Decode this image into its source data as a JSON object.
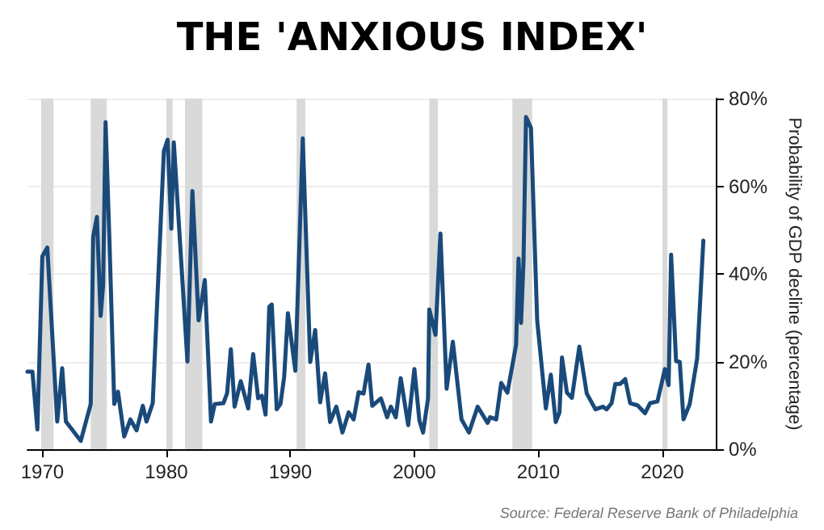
{
  "chart_data": {
    "type": "line",
    "title": "THE 'ANXIOUS INDEX'",
    "ylabel": "Probability of GDP decline (percentage)",
    "annotations": [
      "Source: Federal Reserve Bank of Philadelphia"
    ],
    "x": [
      1968.8,
      1969.2,
      1969.6,
      1970,
      1970.4,
      1971.2,
      1971.6,
      1971.9,
      1973.1,
      1973.9,
      1974.1,
      1974.4,
      1974.7,
      1974.9,
      1975.1,
      1975.4,
      1975.8,
      1976.1,
      1976.6,
      1977.1,
      1977.6,
      1978.1,
      1978.4,
      1978.9,
      1979.8,
      1980.1,
      1980.4,
      1980.6,
      1981.7,
      1982.1,
      1982.6,
      1983.1,
      1983.6,
      1983.9,
      1984.6,
      1984.9,
      1985.2,
      1985.5,
      1986,
      1986.6,
      1987,
      1987.4,
      1987.7,
      1988,
      1988.3,
      1988.5,
      1988.9,
      1989.2,
      1989.5,
      1989.8,
      1990.4,
      1991,
      1991.6,
      1992,
      1992.4,
      1992.8,
      1993.2,
      1993.7,
      1994.2,
      1994.7,
      1995.1,
      1995.5,
      1995.9,
      1996.3,
      1996.6,
      1997.3,
      1997.8,
      1998.1,
      1998.5,
      1998.9,
      1999.5,
      2000,
      2000.4,
      2000.7,
      2001.1,
      2001.2,
      2001.7,
      2002.1,
      2002.6,
      2003.1,
      2003.8,
      2004.4,
      2005.1,
      2005.9,
      2006.1,
      2006.6,
      2007,
      2007.5,
      2008.2,
      2008.4,
      2008.6,
      2008.8,
      2009,
      2009.4,
      2009.9,
      2010.6,
      2011,
      2011.4,
      2011.7,
      2011.9,
      2012.3,
      2012.7,
      2013.3,
      2013.9,
      2014.6,
      2015.2,
      2015.5,
      2015.9,
      2016.2,
      2016.6,
      2017,
      2017.4,
      2018,
      2018.6,
      2019,
      2019.6,
      2020.2,
      2020.5,
      2020.7,
      2021.1,
      2021.4,
      2021.7,
      2022.2,
      2022.8,
      2023.3
    ],
    "series": [
      {
        "color": "#1a4a7a",
        "values": [
          17.7,
          17.7,
          4.5,
          44,
          46,
          6.3,
          18.5,
          6.3,
          1.9,
          10.3,
          48.5,
          53,
          30.4,
          37.4,
          74.6,
          48.5,
          10.3,
          13.1,
          2.9,
          6.8,
          4.3,
          9.9,
          6.3,
          10.5,
          68,
          70.6,
          50.3,
          70,
          20,
          58.9,
          29.4,
          38.6,
          6.3,
          10.3,
          10.5,
          12.8,
          22.8,
          9.7,
          15.5,
          9.3,
          21.7,
          11.6,
          12.2,
          7.9,
          32.5,
          33,
          9.1,
          10.3,
          16.5,
          31,
          17.9,
          70.9,
          19.9,
          27.2,
          10.7,
          17.3,
          6.2,
          9.7,
          3.8,
          8.4,
          6.8,
          13,
          12.7,
          19.3,
          9.9,
          11.6,
          7.3,
          9.7,
          7.3,
          16.2,
          5.5,
          18.3,
          6.6,
          3.8,
          11.6,
          31.9,
          26.1,
          49.2,
          13.8,
          24.5,
          6.8,
          3.8,
          9.7,
          6,
          7.3,
          6.8,
          15.1,
          12.9,
          23.8,
          43.5,
          28.8,
          42.9,
          75.8,
          73.3,
          29.4,
          9.3,
          17,
          6.2,
          8.4,
          20.9,
          12.9,
          11.7,
          23.4,
          12.7,
          9.1,
          9.7,
          9.1,
          10.5,
          14.9,
          14.9,
          16,
          10.5,
          10,
          8.2,
          10.5,
          10.9,
          18.3,
          14.6,
          44.4,
          20.1,
          19.9,
          6.8,
          10.3,
          20.7,
          47.6
        ]
      }
    ],
    "xlim": [
      1968.8,
      2024.3
    ],
    "xticks": [
      1970,
      1980,
      1990,
      2000,
      2010,
      2020
    ],
    "ylim": [
      0,
      80
    ],
    "yticks": [
      {
        "value": 0,
        "label": "0%"
      },
      {
        "value": 20,
        "label": "20%"
      },
      {
        "value": 40,
        "label": "40%"
      },
      {
        "value": 60,
        "label": "60%"
      },
      {
        "value": 80,
        "label": "80%"
      }
    ],
    "grid": "y",
    "marker": "none",
    "line_style": "solid",
    "bands": [
      {
        "axis": "x",
        "from": 1969.9,
        "to": 1970.9,
        "color": "#d9d9d9"
      },
      {
        "axis": "x",
        "from": 1973.9,
        "to": 1975.2,
        "color": "#d9d9d9"
      },
      {
        "axis": "x",
        "from": 1980.0,
        "to": 1980.5,
        "color": "#d9d9d9"
      },
      {
        "axis": "x",
        "from": 1981.5,
        "to": 1982.9,
        "color": "#d9d9d9"
      },
      {
        "axis": "x",
        "from": 1990.5,
        "to": 1991.2,
        "color": "#d9d9d9"
      },
      {
        "axis": "x",
        "from": 2001.2,
        "to": 2001.9,
        "color": "#d9d9d9"
      },
      {
        "axis": "x",
        "from": 2007.9,
        "to": 2009.5,
        "color": "#d9d9d9"
      },
      {
        "axis": "x",
        "from": 2020.0,
        "to": 2020.4,
        "color": "#d9d9d9"
      }
    ]
  }
}
